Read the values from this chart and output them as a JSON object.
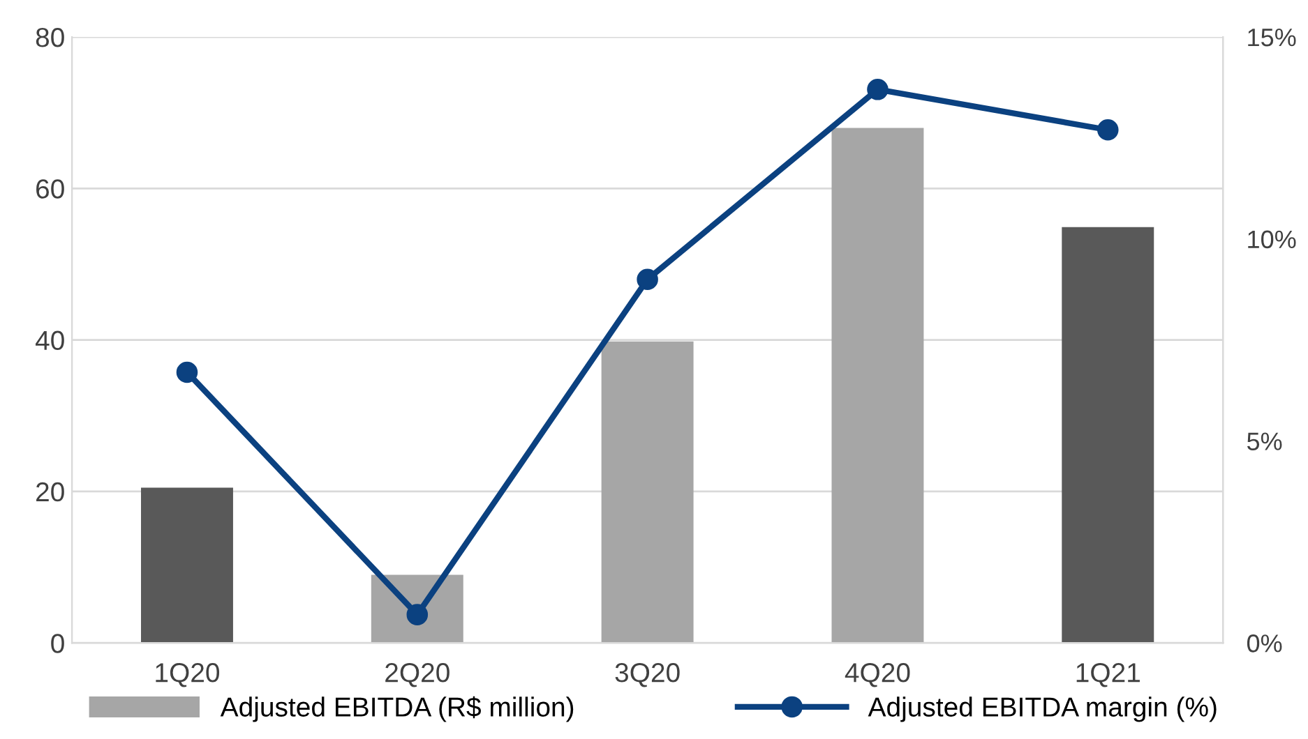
{
  "chart_data": {
    "type": "bar",
    "categories": [
      "1Q20",
      "2Q20",
      "3Q20",
      "4Q20",
      "1Q21"
    ],
    "series": [
      {
        "name": "Adjusted EBITDA (R$ million)",
        "color": "#a6a6a6",
        "colors": [
          "#595959",
          "#a6a6a6",
          "#a6a6a6",
          "#a6a6a6",
          "#595959"
        ],
        "values": [
          20.5,
          9,
          39.8,
          68,
          54.9
        ]
      },
      {
        "name": "Adjusted EBITDA margin (%)",
        "type": "line",
        "axis": "y2",
        "color": "#0b4180",
        "values": [
          6.7,
          0.7,
          9.0,
          13.7,
          12.7
        ]
      }
    ],
    "ylim": [
      0,
      80
    ],
    "yticks": [
      0,
      20,
      40,
      60,
      80
    ],
    "y2lim": [
      0,
      15
    ],
    "y2ticks": [
      {
        "value": 0,
        "label": "0%"
      },
      {
        "value": 5,
        "label": "5%"
      },
      {
        "value": 10,
        "label": "10%"
      },
      {
        "value": 15,
        "label": "15%"
      }
    ],
    "grid": "y",
    "legend": "bottom",
    "marker": "circle",
    "line_style": "solid"
  }
}
